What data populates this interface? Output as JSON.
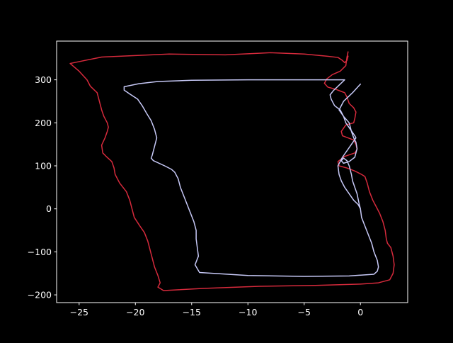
{
  "chart_data": {
    "type": "line",
    "title": "",
    "xlabel": "",
    "ylabel": "",
    "xlim": [
      -27,
      4.2
    ],
    "ylim": [
      -218,
      390
    ],
    "grid": false,
    "legend": "none",
    "background": "#000000",
    "foreground": "#ffffff",
    "xticks": [
      -25,
      -20,
      -15,
      -10,
      -5,
      0
    ],
    "xtick_labels": [
      "−25",
      "−20",
      "−15",
      "−10",
      "−5",
      "0"
    ],
    "yticks": [
      -200,
      -100,
      0,
      100,
      200,
      300
    ],
    "ytick_labels": [
      "−200",
      "−100",
      "0",
      "100",
      "200",
      "300"
    ],
    "series": [
      {
        "color": "#d62a3c",
        "x": [
          -1.1,
          -1.2,
          -1.3,
          -1.8,
          -2.5,
          -3.0,
          -3.2,
          -2.9,
          -2.2,
          -1.7,
          -1.4,
          -1.2,
          -1.0,
          -0.6,
          -0.4,
          -0.5,
          -0.6,
          -1.3,
          -1.7,
          -1.6,
          -1.1,
          -0.6,
          -0.4,
          -0.3,
          -0.5,
          -1.4,
          -2.0,
          -1.9,
          -1.2,
          -0.5,
          0.1,
          0.4,
          0.6,
          0.8,
          1.1,
          1.4,
          1.7,
          2.0,
          2.2,
          2.3,
          2.4,
          2.7,
          2.9,
          3.0,
          2.9,
          2.6,
          1.6,
          0.0,
          -4.0,
          -9.0,
          -14.0,
          -17.5,
          -18.0,
          -17.8,
          -18.0,
          -18.3,
          -18.5,
          -18.7,
          -18.9,
          -19.2,
          -19.6,
          -20.1,
          -20.3,
          -20.5,
          -20.8,
          -21.4,
          -21.8,
          -21.9,
          -22.1,
          -22.6,
          -22.9,
          -23.0,
          -22.7,
          -22.5,
          -22.4,
          -22.5,
          -22.8,
          -23.0,
          -23.2,
          -23.4,
          -24.0,
          -24.3,
          -25.0,
          -25.8,
          -23.0,
          -17.0,
          -12.0,
          -8.0,
          -5.0,
          -3.0,
          -2.0,
          -1.6,
          -1.4,
          -1.2,
          -1.1
        ],
        "y": [
          365,
          352,
          333,
          320,
          312,
          302,
          292,
          283,
          278,
          273,
          270,
          260,
          245,
          235,
          225,
          210,
          200,
          195,
          180,
          170,
          165,
          160,
          150,
          138,
          130,
          122,
          110,
          100,
          95,
          88,
          80,
          75,
          60,
          40,
          20,
          5,
          -10,
          -30,
          -50,
          -70,
          -80,
          -90,
          -110,
          -130,
          -150,
          -165,
          -172,
          -175,
          -178,
          -180,
          -185,
          -190,
          -182,
          -172,
          -155,
          -135,
          -115,
          -95,
          -75,
          -55,
          -40,
          -20,
          0,
          20,
          40,
          60,
          80,
          95,
          110,
          122,
          130,
          148,
          165,
          180,
          190,
          200,
          215,
          230,
          250,
          270,
          285,
          300,
          320,
          338,
          353,
          360,
          358,
          363,
          360,
          355,
          352,
          345,
          340,
          345,
          355
        ]
      },
      {
        "color": "#c7c9f7",
        "x": [
          0.0,
          -0.2,
          -0.6,
          -1.0,
          -1.4,
          -1.7,
          -1.9,
          -2.0,
          -1.6,
          -0.8,
          -0.4,
          -0.5,
          -0.9,
          -1.3,
          -1.5,
          -1.8,
          -2.3,
          -2.6,
          -2.7,
          -2.4,
          -1.8,
          -1.4,
          -1.5,
          -2.5,
          -5.0,
          -10.0,
          -15.0,
          -18.0,
          -19.7,
          -21.0,
          -21.0,
          -20.5,
          -19.8,
          -19.4,
          -19.0,
          -18.6,
          -18.3,
          -18.1,
          -18.3,
          -18.5,
          -18.6,
          -18.4,
          -17.4,
          -16.8,
          -16.5,
          -16.2,
          -16.0,
          -15.7,
          -15.4,
          -15.1,
          -14.8,
          -14.6,
          -14.6,
          -14.5,
          -14.4,
          -14.7,
          -14.3,
          -10.0,
          -5.0,
          -1.0,
          1.2,
          1.5,
          1.6,
          1.5,
          1.2,
          1.0,
          0.7,
          0.4,
          0.1,
          0.0,
          -0.1,
          -0.2,
          -0.3,
          -0.5,
          -0.7,
          -0.8,
          -0.9,
          -1.0,
          -1.2,
          -1.5,
          -1.7,
          -1.5,
          -1.0,
          -0.5,
          -0.3,
          -0.4,
          -0.6,
          -0.8,
          -1.0,
          -1.5,
          -1.9,
          -1.5,
          -0.7,
          0.0
        ],
        "y": [
          0,
          10,
          20,
          35,
          50,
          65,
          80,
          100,
          120,
          150,
          165,
          170,
          185,
          200,
          215,
          230,
          240,
          255,
          265,
          275,
          290,
          300,
          300,
          300,
          300,
          300,
          299,
          296,
          291,
          284,
          276,
          267,
          255,
          240,
          222,
          205,
          185,
          165,
          145,
          125,
          118,
          112,
          100,
          92,
          85,
          70,
          50,
          30,
          10,
          -10,
          -30,
          -50,
          -70,
          -90,
          -110,
          -130,
          -148,
          -155,
          -157,
          -156,
          -152,
          -145,
          -135,
          -120,
          -100,
          -80,
          -60,
          -40,
          -20,
          0,
          10,
          22,
          35,
          50,
          65,
          80,
          90,
          100,
          112,
          118,
          112,
          106,
          110,
          120,
          140,
          155,
          165,
          180,
          200,
          215,
          230,
          250,
          270,
          290
        ]
      }
    ]
  }
}
